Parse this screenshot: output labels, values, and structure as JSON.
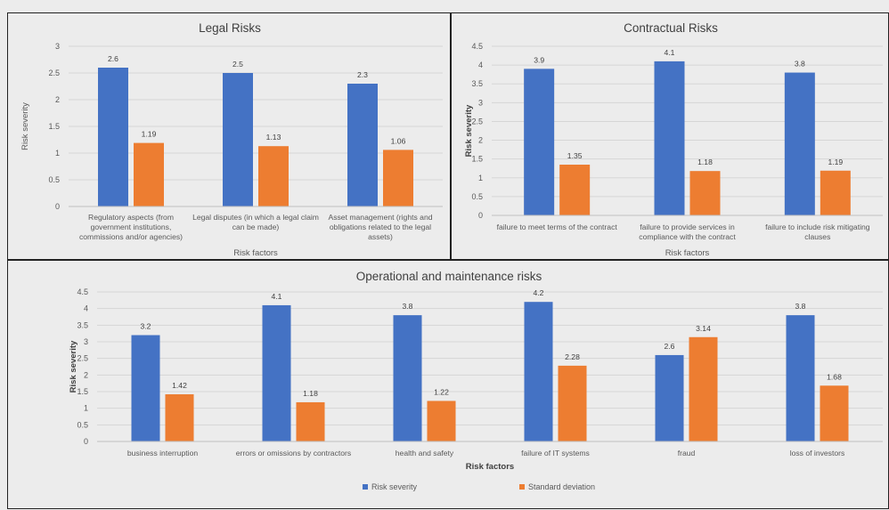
{
  "colors": {
    "severity": "#4472C4",
    "deviation": "#ED7D31",
    "grid": "#d6d6d6"
  },
  "chart_data": [
    {
      "type": "bar",
      "title": "Legal Risks",
      "xlabel": "Risk factors",
      "ylabel": "Risk severity",
      "ylim": [
        0,
        3
      ],
      "ystep": 0.5,
      "ticks": [
        "0",
        "0.5",
        "1",
        "1.5",
        "2",
        "2.5",
        "3"
      ],
      "grid": true,
      "categories": [
        [
          "Regulatory aspects (from",
          "government institutions,",
          "commissions and/or agencies)"
        ],
        [
          "Legal disputes (in which a legal claim",
          "can be made)"
        ],
        [
          "Asset management (rights and",
          "obligations related to the legal",
          "assets)"
        ]
      ],
      "series": [
        {
          "name": "Risk severity",
          "values": [
            2.6,
            2.5,
            2.3
          ],
          "labels": [
            "2.6",
            "2.5",
            "2.3"
          ]
        },
        {
          "name": "Standard deviation",
          "values": [
            1.19,
            1.13,
            1.06
          ],
          "labels": [
            "1.19",
            "1.13",
            "1.06"
          ]
        }
      ]
    },
    {
      "type": "bar",
      "title": "Contractual Risks",
      "xlabel": "Risk factors",
      "ylabel": "Risk severity",
      "ylim": [
        0,
        4.5
      ],
      "ystep": 0.5,
      "ticks": [
        "0",
        "0.5",
        "1",
        "1.5",
        "2",
        "2.5",
        "3",
        "3.5",
        "4",
        "4.5"
      ],
      "grid": true,
      "categories": [
        [
          "failure to meet terms of the contract"
        ],
        [
          "failure to provide services in",
          "compliance with the contract"
        ],
        [
          "failure to include risk mitigating",
          "clauses"
        ]
      ],
      "series": [
        {
          "name": "Risk severity",
          "values": [
            3.9,
            4.1,
            3.8
          ],
          "labels": [
            "3.9",
            "4.1",
            "3.8"
          ]
        },
        {
          "name": "Standard deviation",
          "values": [
            1.35,
            1.18,
            1.19
          ],
          "labels": [
            "1.35",
            "1.18",
            "1.19"
          ]
        }
      ]
    },
    {
      "type": "bar",
      "title": "Operational and maintenance risks",
      "xlabel": "Risk factors",
      "ylabel": "Risk severity",
      "ylim": [
        0,
        4.5
      ],
      "ystep": 0.5,
      "ticks": [
        "0",
        "0.5",
        "1",
        "1.5",
        "2",
        "2.5",
        "3",
        "3.5",
        "4",
        "4.5"
      ],
      "grid": true,
      "legend": "bottom",
      "legend_entries": [
        "Risk severity",
        "Standard deviation"
      ],
      "categories": [
        [
          "business interruption"
        ],
        [
          "errors or omissions by contractors"
        ],
        [
          "health and safety"
        ],
        [
          "failure of IT systems"
        ],
        [
          "fraud"
        ],
        [
          "loss of investors"
        ]
      ],
      "series": [
        {
          "name": "Risk severity",
          "values": [
            3.2,
            4.1,
            3.8,
            4.2,
            2.6,
            3.8
          ],
          "labels": [
            "3.2",
            "4.1",
            "3.8",
            "4.2",
            "2.6",
            "3.8"
          ]
        },
        {
          "name": "Standard deviation",
          "values": [
            1.42,
            1.18,
            1.22,
            2.28,
            3.14,
            1.68
          ],
          "labels": [
            "1.42",
            "1.18",
            "1.22",
            "2.28",
            "3.14",
            "1.68"
          ]
        }
      ]
    }
  ]
}
